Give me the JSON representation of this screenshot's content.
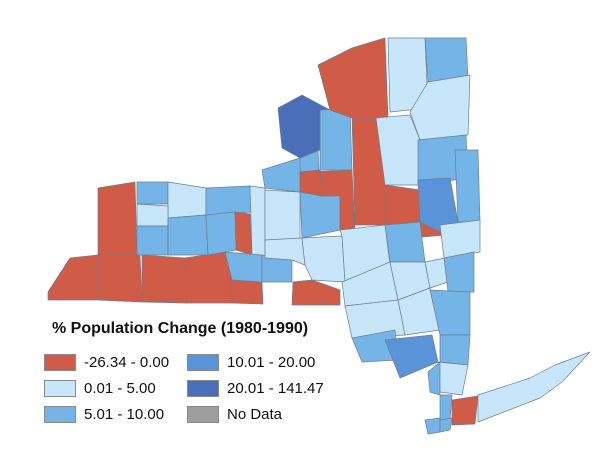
{
  "legend": {
    "title": "% Population Change (1980-1990)",
    "classes": [
      {
        "label": "-26.34 - 0.00",
        "color": "#d05b46"
      },
      {
        "label": "0.01 - 5.00",
        "color": "#c8e6fa"
      },
      {
        "label": "5.01 - 10.00",
        "color": "#75b4e6"
      },
      {
        "label": "10.01 - 20.00",
        "color": "#5b93d8"
      },
      {
        "label": "20.01 - 141.47",
        "color": "#4a6fb8"
      },
      {
        "label": "No Data",
        "color": "#9e9e9e"
      }
    ]
  },
  "colors": {
    "border": "#6d7d90",
    "background": "#ffffff"
  }
}
